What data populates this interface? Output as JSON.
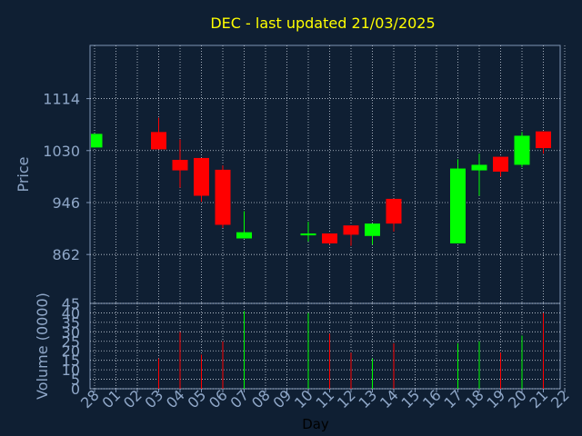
{
  "chart_data": {
    "type": "candlestick",
    "title": "DEC - last updated 21/03/2025",
    "xlabel": "Day",
    "price_panel": {
      "ylabel": "Price",
      "yticks": [
        862,
        946,
        1030,
        1114
      ],
      "ylim": [
        783,
        1200
      ]
    },
    "volume_panel": {
      "ylabel": "Volume (0000)",
      "yticks": [
        0,
        5,
        10,
        15,
        20,
        25,
        30,
        35,
        40,
        45
      ],
      "ylim": [
        0,
        45
      ]
    },
    "x_tick_labels": [
      "28",
      "01",
      "02",
      "03",
      "04",
      "05",
      "06",
      "07",
      "08",
      "09",
      "10",
      "11",
      "12",
      "13",
      "14",
      "15",
      "16",
      "17",
      "18",
      "19",
      "20",
      "21",
      "22"
    ],
    "candles": [
      {
        "day": "28",
        "open": 1035,
        "close": 1057,
        "high": 1057,
        "low": 1035,
        "volume": 0
      },
      {
        "day": "03",
        "open": 1060,
        "close": 1032,
        "high": 1083,
        "low": 1032,
        "volume": 16
      },
      {
        "day": "04",
        "open": 1015,
        "close": 998,
        "high": 1048,
        "low": 970,
        "volume": 30
      },
      {
        "day": "05",
        "open": 1018,
        "close": 957,
        "high": 1018,
        "low": 947,
        "volume": 18
      },
      {
        "day": "06",
        "open": 999,
        "close": 910,
        "high": 1006,
        "low": 905,
        "volume": 25
      },
      {
        "day": "07",
        "open": 888,
        "close": 898,
        "high": 932,
        "low": 888,
        "volume": 41
      },
      {
        "day": "10",
        "open": 893,
        "close": 896,
        "high": 915,
        "low": 883,
        "volume": 40
      },
      {
        "day": "11",
        "open": 896,
        "close": 880,
        "high": 896,
        "low": 878,
        "volume": 29
      },
      {
        "day": "12",
        "open": 909,
        "close": 894,
        "high": 909,
        "low": 876,
        "volume": 19
      },
      {
        "day": "13",
        "open": 892,
        "close": 912,
        "high": 912,
        "low": 878,
        "volume": 16
      },
      {
        "day": "14",
        "open": 952,
        "close": 912,
        "high": 952,
        "low": 899,
        "volume": 24
      },
      {
        "day": "17",
        "open": 880,
        "close": 1001,
        "high": 1016,
        "low": 880,
        "volume": 24
      },
      {
        "day": "18",
        "open": 998,
        "close": 1007,
        "high": 1025,
        "low": 957,
        "volume": 25
      },
      {
        "day": "19",
        "open": 1020,
        "close": 996,
        "high": 1020,
        "low": 988,
        "volume": 19
      },
      {
        "day": "20",
        "open": 1007,
        "close": 1054,
        "high": 1060,
        "low": 1003,
        "volume": 28
      },
      {
        "day": "21",
        "open": 1061,
        "close": 1034,
        "high": 1061,
        "low": 1025,
        "volume": 40
      }
    ],
    "up_color": "#00ff00",
    "down_color": "#ff0000",
    "grid": true
  }
}
